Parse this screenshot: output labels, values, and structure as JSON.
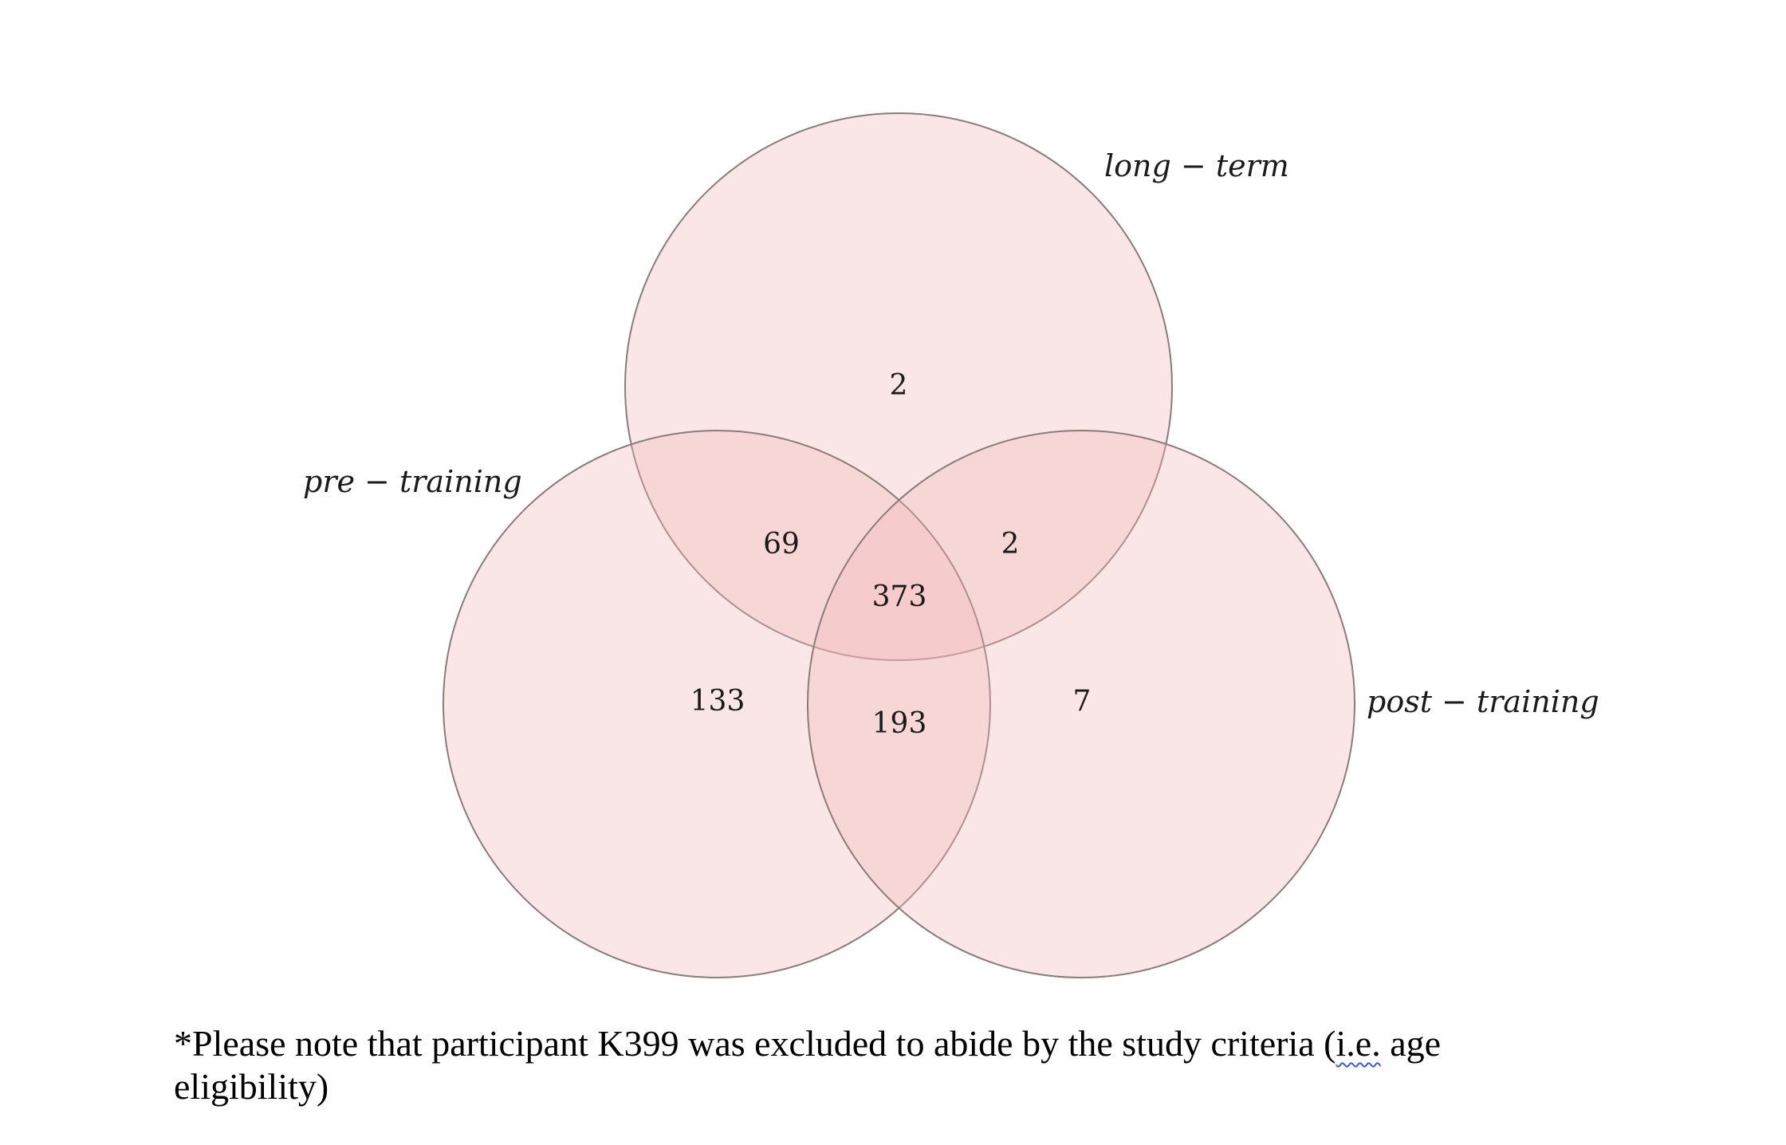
{
  "diagram": {
    "fill_color": "#f2b8b8",
    "stroke_color": "#8c7b7b",
    "sets": [
      {
        "id": "long",
        "label": "long − term"
      },
      {
        "id": "pre",
        "label": "pre − training"
      },
      {
        "id": "post",
        "label": "post − training"
      }
    ],
    "regions": {
      "long_only": "2",
      "pre_long": "69",
      "long_post": "2",
      "all_three": "373",
      "pre_only": "133",
      "pre_post": "193",
      "post_only": "7"
    }
  },
  "footnote": {
    "line1_prefix": "*Please note that participant K399 was excluded to abide by the study criteria (",
    "line1_flagged": "i.e.",
    "line1_suffix": " age",
    "line2": "eligibility)",
    "flag_color": "#3a5fd0"
  }
}
